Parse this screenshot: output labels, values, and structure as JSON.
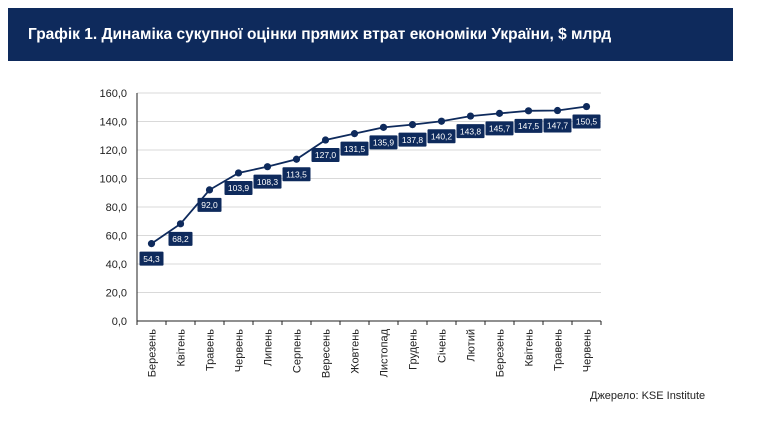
{
  "header": {
    "title": "Графік 1. Динаміка сукупної оцінки прямих втрат економіки України, $ млрд"
  },
  "footer": {
    "source": "Джерело: KSE Institute"
  },
  "colors": {
    "title_background": "#0e2a5c",
    "line": "#0e2a5c",
    "marker": "#0e2a5c",
    "label_background": "#0e2a5c",
    "label_text": "#ffffff",
    "grid": "#d9d9d9",
    "axis": "#222222"
  },
  "chart_data": {
    "type": "line",
    "title": "Графік 1. Динаміка сукупної оцінки прямих втрат економіки України, $ млрд",
    "xlabel": "",
    "ylabel": "",
    "categories": [
      "Березень",
      "Квітень",
      "Травень",
      "Червень",
      "Липень",
      "Серпень",
      "Вересень",
      "Жовтень",
      "Листопад",
      "Грудень",
      "Січень",
      "Лютий",
      "Березень",
      "Квітень",
      "Травень",
      "Червень"
    ],
    "values": [
      54.3,
      68.2,
      92.0,
      103.9,
      108.3,
      113.5,
      127.0,
      131.5,
      135.9,
      137.8,
      140.2,
      143.8,
      145.7,
      147.5,
      147.7,
      150.5
    ],
    "value_labels": [
      "54,3",
      "68,2",
      "92,0",
      "103,9",
      "108,3",
      "113,5",
      "127,0",
      "131,5",
      "135,9",
      "137,8",
      "140,2",
      "143,8",
      "145,7",
      "147,5",
      "147,7",
      "150,5"
    ],
    "ylim": [
      0,
      160
    ],
    "yticks": [
      0,
      20,
      40,
      60,
      80,
      100,
      120,
      140,
      160
    ],
    "ytick_labels": [
      "0,0",
      "20,0",
      "40,0",
      "60,0",
      "80,0",
      "100,0",
      "120,0",
      "140,0",
      "160,0"
    ],
    "grid": true,
    "legend": "none"
  }
}
